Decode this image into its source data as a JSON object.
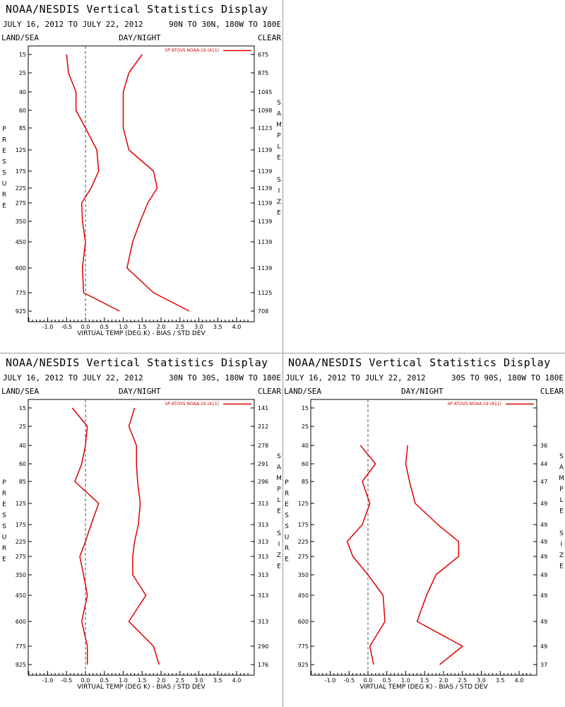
{
  "panels": [
    {
      "title": "NOAA/NESDIS Vertical Statistics Display",
      "dates": "JULY 16, 2012 TO JULY 22, 2012",
      "region": "90N TO 30N, 180W TO 180E",
      "land_sea": "LAND/SEA",
      "day_night": "DAY/NIGHT",
      "clear": "CLEAR",
      "legend": "SP ATOVS NOAA-19 (A11)",
      "xlabel": "VIRTUAL TEMP (DEG K) - BIAS / STD DEV",
      "ylabel": "PRESSURE",
      "y2label": "SAMPLE SIZE",
      "xticks": [
        "-1.0",
        "-0.5",
        "0.0",
        "0.5",
        "1.0",
        "1.5",
        "2.0",
        "2.5",
        "3.0",
        "3.5",
        "4.0"
      ],
      "pressure_labels": [
        "15",
        "25",
        "40",
        "60",
        "85",
        "125",
        "175",
        "225",
        "275",
        "350",
        "450",
        "600",
        "775",
        "925"
      ],
      "sample_sizes": [
        "675",
        "875",
        "1045",
        "1098",
        "1123",
        "1139",
        "1139",
        "1139",
        "1139",
        "1139",
        "1139",
        "1139",
        "1125",
        "708"
      ]
    },
    {
      "title": "NOAA/NESDIS Vertical Statistics Display",
      "dates": "JULY 16, 2012 TO JULY 22, 2012",
      "region": "30N TO 30S, 180W TO 180E",
      "land_sea": "LAND/SEA",
      "day_night": "DAY/NIGHT",
      "clear": "CLEAR",
      "legend": "SP ATOVS NOAA-19 (A11)",
      "xlabel": "VIRTUAL TEMP (DEG K) - BIAS / STD DEV",
      "ylabel": "PRESSURE",
      "y2label": "SAMPLE SIZE",
      "xticks": [
        "-1.0",
        "-0.5",
        "0.0",
        "0.5",
        "1.0",
        "1.5",
        "2.0",
        "2.5",
        "3.0",
        "3.5",
        "4.0"
      ],
      "pressure_labels": [
        "15",
        "25",
        "40",
        "60",
        "85",
        "125",
        "175",
        "225",
        "275",
        "350",
        "450",
        "600",
        "775",
        "925"
      ],
      "sample_sizes": [
        "141",
        "212",
        "278",
        "291",
        "296",
        "313",
        "313",
        "313",
        "313",
        "313",
        "313",
        "313",
        "290",
        "176"
      ]
    },
    {
      "title": "NOAA/NESDIS Vertical Statistics Display",
      "dates": "JULY 16, 2012 TO JULY 22, 2012",
      "region": "30S TO 90S, 180W TO 180E",
      "land_sea": "LAND/SEA",
      "day_night": "DAY/NIGHT",
      "clear": "CLEAR",
      "legend": "SP ATOVS NOAA-19 (A11)",
      "xlabel": "VIRTUAL TEMP (DEG K) - BIAS / STD DEV",
      "ylabel": "PRESSURE",
      "y2label": "SAMPLE SIZE",
      "xticks": [
        "-1.0",
        "-0.5",
        "0.0",
        "0.5",
        "1.0",
        "1.5",
        "2.0",
        "2.5",
        "3.0",
        "3.5",
        "4.0"
      ],
      "pressure_labels": [
        "15",
        "25",
        "40",
        "60",
        "85",
        "125",
        "175",
        "225",
        "275",
        "350",
        "450",
        "600",
        "775",
        "925"
      ],
      "sample_sizes": [
        "",
        "",
        "36",
        "44",
        "47",
        "49",
        "49",
        "49",
        "49",
        "49",
        "49",
        "49",
        "49",
        "37"
      ]
    }
  ],
  "colors": {
    "series": "#dd0000",
    "zero_line": "#555555",
    "axis": "#000000"
  },
  "chart_data": [
    {
      "type": "line",
      "title": "NOAA/NESDIS Vertical Statistics Display",
      "xlabel": "VIRTUAL TEMP (DEG K) - BIAS / STD DEV",
      "ylabel": "PRESSURE",
      "xlim": [
        -1.5,
        4.3
      ],
      "yaxis": "pressure (hPa), increasing downward",
      "pressure": [
        15,
        25,
        40,
        60,
        85,
        125,
        175,
        225,
        275,
        350,
        450,
        600,
        775,
        925
      ],
      "series": [
        {
          "name": "bias",
          "values": [
            -0.5,
            -0.45,
            -0.25,
            -0.25,
            0.0,
            0.3,
            0.35,
            0.15,
            -0.1,
            -0.08,
            0.0,
            -0.08,
            -0.05,
            0.9
          ]
        },
        {
          "name": "std_dev",
          "values": [
            1.5,
            1.15,
            1.0,
            1.0,
            1.0,
            1.15,
            1.8,
            1.9,
            1.65,
            1.45,
            1.25,
            1.1,
            1.8,
            2.75
          ]
        }
      ],
      "legend": "SP ATOVS NOAA-19 (A11)"
    },
    {
      "type": "line",
      "title": "NOAA/NESDIS Vertical Statistics Display",
      "xlabel": "VIRTUAL TEMP (DEG K) - BIAS / STD DEV",
      "ylabel": "PRESSURE",
      "xlim": [
        -1.5,
        4.3
      ],
      "yaxis": "pressure (hPa), increasing downward",
      "pressure": [
        15,
        25,
        40,
        60,
        85,
        125,
        175,
        225,
        275,
        350,
        450,
        600,
        775,
        925
      ],
      "series": [
        {
          "name": "bias",
          "values": [
            -0.35,
            0.05,
            0.0,
            -0.1,
            -0.28,
            0.35,
            0.15,
            0.0,
            -0.15,
            -0.05,
            0.05,
            -0.1,
            0.05,
            0.05
          ]
        },
        {
          "name": "std_dev",
          "values": [
            1.3,
            1.15,
            1.35,
            1.35,
            1.38,
            1.45,
            1.4,
            1.3,
            1.25,
            1.25,
            1.6,
            1.15,
            1.8,
            1.95
          ]
        }
      ],
      "legend": "SP ATOVS NOAA-19 (A11)"
    },
    {
      "type": "line",
      "title": "NOAA/NESDIS Vertical Statistics Display",
      "xlabel": "VIRTUAL TEMP (DEG K) - BIAS / STD DEV",
      "ylabel": "PRESSURE",
      "xlim": [
        -1.5,
        4.3
      ],
      "yaxis": "pressure (hPa), increasing downward",
      "pressure": [
        40,
        60,
        85,
        125,
        175,
        225,
        275,
        350,
        450,
        600,
        775,
        925
      ],
      "series": [
        {
          "name": "bias",
          "values": [
            -0.2,
            0.2,
            -0.15,
            0.05,
            -0.15,
            -0.55,
            -0.4,
            0.0,
            0.4,
            0.45,
            0.05,
            0.15
          ]
        },
        {
          "name": "std_dev",
          "values": [
            1.05,
            1.0,
            1.1,
            1.25,
            1.85,
            2.4,
            2.4,
            1.8,
            1.55,
            1.3,
            2.5,
            1.9
          ]
        }
      ],
      "legend": "SP ATOVS NOAA-19 (A11)"
    }
  ]
}
